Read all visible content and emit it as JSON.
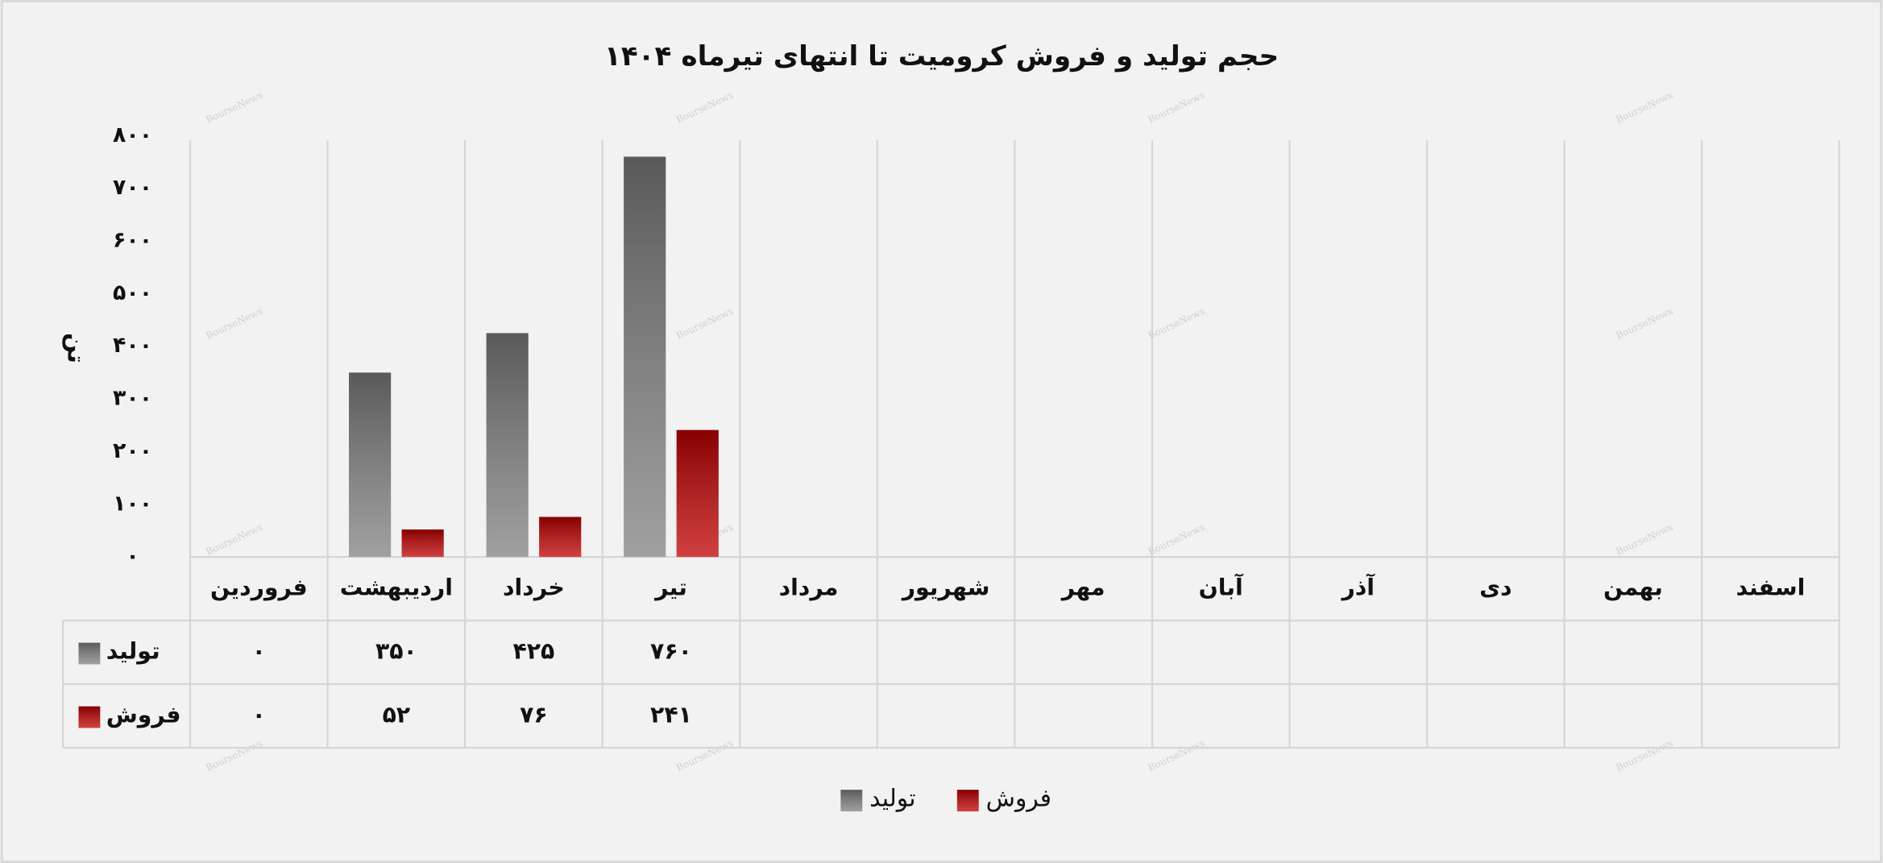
{
  "chart_data": {
    "type": "bar",
    "title": "حجم تولید و فروش کرومیت تا انتهای تیرماه ۱۴۰۴",
    "y_label": "تن",
    "watermark": "BourseNews",
    "categories": [
      "فروردین",
      "اردیبهشت",
      "خرداد",
      "تیر",
      "مرداد",
      "شهریور",
      "مهر",
      "آبان",
      "آذر",
      "دی",
      "بهمن",
      "اسفند"
    ],
    "series": [
      {
        "name": "تولید",
        "color": "#808080",
        "values": [
          0,
          350,
          425,
          760,
          null,
          null,
          null,
          null,
          null,
          null,
          null,
          null
        ],
        "value_labels": [
          "۰",
          "۳۵۰",
          "۴۲۵",
          "۷۶۰",
          null,
          null,
          null,
          null,
          null,
          null,
          null,
          null
        ]
      },
      {
        "name": "فروش",
        "color": "#c00000",
        "values": [
          0,
          52,
          76,
          241,
          null,
          null,
          null,
          null,
          null,
          null,
          null,
          null
        ],
        "value_labels": [
          "۰",
          "۵۲",
          "۷۶",
          "۲۴۱",
          null,
          null,
          null,
          null,
          null,
          null,
          null,
          null
        ]
      }
    ],
    "ylim": [
      0,
      800
    ],
    "yticks": [
      {
        "value": 0,
        "label": "۰"
      },
      {
        "value": 100,
        "label": "۱۰۰"
      },
      {
        "value": 200,
        "label": "۲۰۰"
      },
      {
        "value": 300,
        "label": "۳۰۰"
      },
      {
        "value": 400,
        "label": "۴۰۰"
      },
      {
        "value": 500,
        "label": "۵۰۰"
      },
      {
        "value": 600,
        "label": "۶۰۰"
      },
      {
        "value": 700,
        "label": "۷۰۰"
      },
      {
        "value": 800,
        "label": "۸۰۰"
      }
    ],
    "grid": true,
    "legend": "bottom"
  }
}
